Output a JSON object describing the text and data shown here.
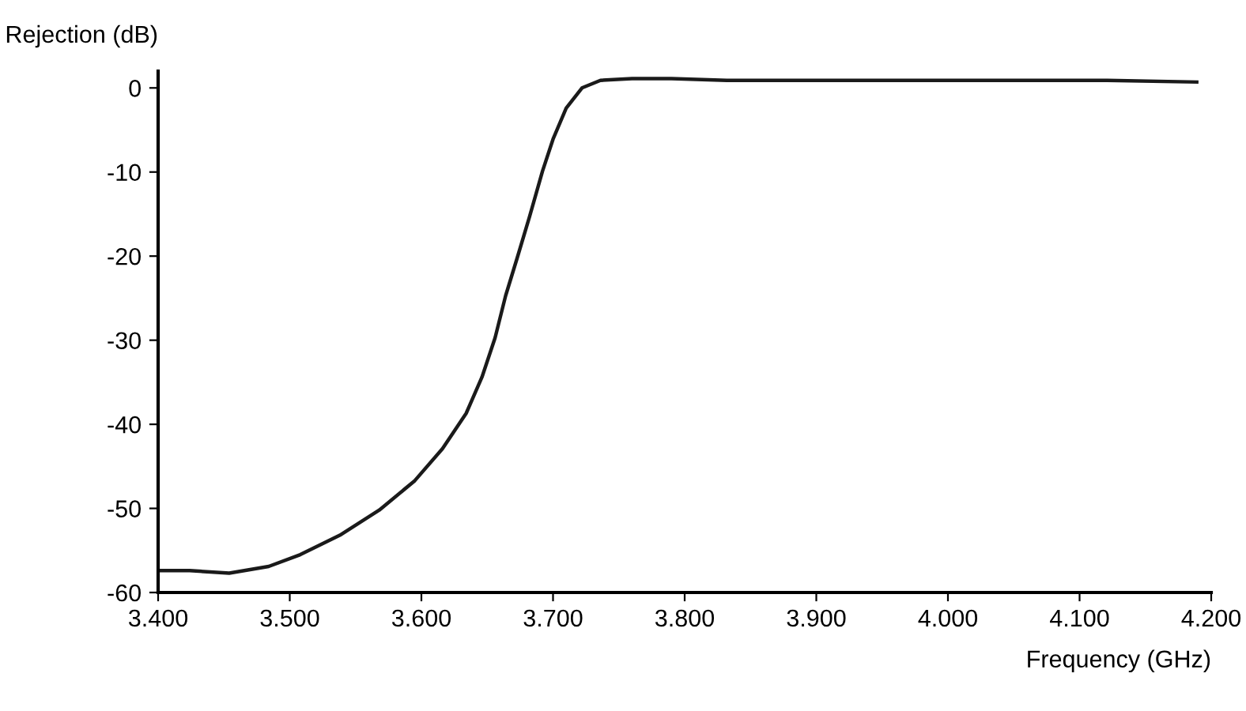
{
  "chart_data": {
    "type": "line",
    "xlabel": "Frequency (GHz)",
    "ylabel": "Rejection (dB)",
    "series": [
      {
        "color": "#1a1a1a",
        "x": [
          3.4,
          3.424,
          3.454,
          3.484,
          3.508,
          3.538,
          3.568,
          3.595,
          3.616,
          3.634,
          3.646,
          3.656,
          3.664,
          3.673,
          3.682,
          3.692,
          3.7,
          3.71,
          3.722,
          3.736,
          3.76,
          3.79,
          3.832,
          3.904,
          4.0,
          4.121,
          4.189
        ],
        "values": [
          -57.4,
          -57.4,
          -57.7,
          -56.9,
          -55.5,
          -53.2,
          -50.2,
          -46.7,
          -42.9,
          -38.7,
          -34.4,
          -29.7,
          -24.7,
          -20.1,
          -15.4,
          -9.9,
          -6.1,
          -2.4,
          0,
          0.9,
          1.1,
          1.1,
          0.9,
          0.9,
          0.9,
          0.9,
          0.7
        ]
      }
    ],
    "xlim": [
      3.4,
      4.2
    ],
    "xticks": [
      {
        "value": 3.4,
        "label": "3.400"
      },
      {
        "value": 3.5,
        "label": "3.500"
      },
      {
        "value": 3.6,
        "label": "3.600"
      },
      {
        "value": 3.7,
        "label": "3.700"
      },
      {
        "value": 3.8,
        "label": "3.800"
      },
      {
        "value": 3.9,
        "label": "3.900"
      },
      {
        "value": 4.0,
        "label": "4.000"
      },
      {
        "value": 4.1,
        "label": "4.100"
      },
      {
        "value": 4.2,
        "label": "4.200"
      }
    ],
    "ylim": [
      -60,
      2
    ],
    "yticks": [
      -60,
      -50,
      -40,
      -30,
      -20,
      -10,
      0
    ],
    "grid": false,
    "legend": false,
    "marker": "none",
    "line_style": "solid"
  }
}
